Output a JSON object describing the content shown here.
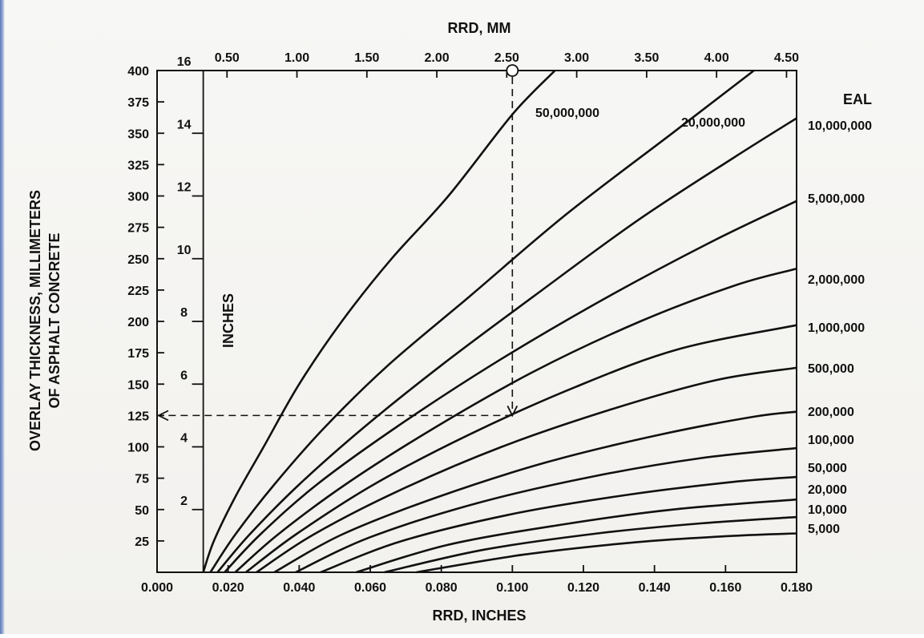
{
  "chart_data": {
    "type": "line",
    "xlabel_bottom": "RRD, INCHES",
    "xlabel_top": "RRD, MM",
    "ylabel_left": "OVERLAY THICKNESS, MILLIMETERS\nOF ASPHALT CONCRETE",
    "ylabel_inner": "INCHES",
    "legend_title": "EAL",
    "xlim": [
      0.0,
      0.18
    ],
    "ylim": [
      0,
      400
    ],
    "x_ticks_bottom": [
      "0.000",
      "0.020",
      "0.040",
      "0.060",
      "0.080",
      "0.100",
      "0.120",
      "0.140",
      "0.160",
      "0.180"
    ],
    "x_ticks_top_mm": [
      {
        "value": 0.5,
        "label": "0.50"
      },
      {
        "value": 1.0,
        "label": "1.00"
      },
      {
        "value": 1.5,
        "label": "1.50"
      },
      {
        "value": 2.0,
        "label": "2.00"
      },
      {
        "value": 2.5,
        "label": "2.50"
      },
      {
        "value": 3.0,
        "label": "3.00"
      },
      {
        "value": 3.5,
        "label": "3.50"
      },
      {
        "value": 4.0,
        "label": "4.00"
      },
      {
        "value": 4.5,
        "label": "4.50"
      }
    ],
    "y_ticks_mm": [
      "25",
      "50",
      "75",
      "100",
      "125",
      "150",
      "175",
      "200",
      "225",
      "250",
      "275",
      "300",
      "325",
      "350",
      "375",
      "400"
    ],
    "y_ticks_inches": [
      {
        "value": 2,
        "label": "2"
      },
      {
        "value": 4,
        "label": "4"
      },
      {
        "value": 6,
        "label": "6"
      },
      {
        "value": 8,
        "label": "8"
      },
      {
        "value": 10,
        "label": "10"
      },
      {
        "value": 12,
        "label": "12"
      },
      {
        "value": 14,
        "label": "14"
      },
      {
        "value": 16,
        "label": "16"
      }
    ],
    "series": [
      {
        "name": "50,000,000",
        "x": [
          0.013,
          0.016,
          0.022,
          0.03,
          0.04,
          0.052,
          0.066,
          0.082,
          0.1,
          0.112
        ],
        "y": [
          0,
          25,
          60,
          100,
          150,
          200,
          250,
          300,
          365,
          400
        ]
      },
      {
        "name": "20,000,000",
        "x": [
          0.015,
          0.022,
          0.033,
          0.047,
          0.065,
          0.088,
          0.115,
          0.145,
          0.168
        ],
        "y": [
          0,
          30,
          70,
          115,
          165,
          220,
          285,
          350,
          400
        ]
      },
      {
        "name": "10,000,000",
        "x": [
          0.017,
          0.026,
          0.04,
          0.058,
          0.08,
          0.106,
          0.135,
          0.162,
          0.18
        ],
        "y": [
          0,
          30,
          70,
          115,
          165,
          220,
          280,
          330,
          362
        ]
      },
      {
        "name": "5,000,000",
        "x": [
          0.019,
          0.029,
          0.045,
          0.067,
          0.094,
          0.124,
          0.155,
          0.18
        ],
        "y": [
          0,
          30,
          70,
          115,
          165,
          215,
          262,
          296
        ]
      },
      {
        "name": "2,000,000",
        "x": [
          0.022,
          0.034,
          0.053,
          0.078,
          0.106,
          0.136,
          0.163,
          0.18
        ],
        "y": [
          0,
          30,
          70,
          115,
          160,
          200,
          229,
          242
        ]
      },
      {
        "name": "1,000,000",
        "x": [
          0.025,
          0.039,
          0.061,
          0.088,
          0.118,
          0.147,
          0.18
        ],
        "y": [
          0,
          30,
          70,
          110,
          148,
          178,
          197
        ]
      },
      {
        "name": "500,000",
        "x": [
          0.028,
          0.044,
          0.068,
          0.097,
          0.128,
          0.157,
          0.18
        ],
        "y": [
          0,
          30,
          65,
          100,
          130,
          153,
          163
        ]
      },
      {
        "name": "200,000",
        "x": [
          0.033,
          0.052,
          0.079,
          0.11,
          0.142,
          0.168,
          0.18
        ],
        "y": [
          0,
          30,
          60,
          88,
          110,
          124,
          128
        ]
      },
      {
        "name": "100,000",
        "x": [
          0.039,
          0.06,
          0.09,
          0.122,
          0.153,
          0.18
        ],
        "y": [
          0,
          28,
          55,
          76,
          91,
          99
        ]
      },
      {
        "name": "50,000",
        "x": [
          0.046,
          0.069,
          0.101,
          0.133,
          0.162,
          0.18
        ],
        "y": [
          0,
          25,
          47,
          62,
          72,
          76
        ]
      },
      {
        "name": "20,000",
        "x": [
          0.056,
          0.082,
          0.114,
          0.145,
          0.18
        ],
        "y": [
          0,
          22,
          38,
          50,
          58
        ]
      },
      {
        "name": "10,000",
        "x": [
          0.064,
          0.092,
          0.124,
          0.153,
          0.18
        ],
        "y": [
          0,
          18,
          31,
          39,
          44
        ]
      },
      {
        "name": "5,000",
        "x": [
          0.073,
          0.103,
          0.135,
          0.162,
          0.18
        ],
        "y": [
          0,
          14,
          24,
          29,
          31
        ]
      }
    ],
    "annotation": {
      "marker_x": 0.1,
      "marker_y": 400,
      "guide_to_y": 125,
      "type": "dashed-guide-with-arrow"
    },
    "grid": false
  },
  "colors": {
    "line": "#111111",
    "background": "#f4f3f0"
  }
}
